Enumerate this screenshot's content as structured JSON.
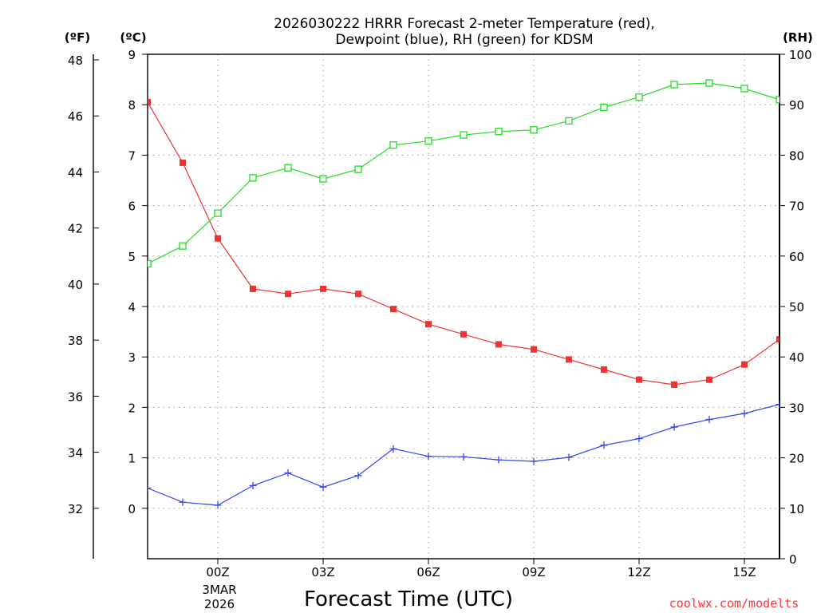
{
  "chart_data": {
    "type": "line",
    "title_line1": "2026030222 HRRR Forecast 2-meter Temperature (red),",
    "title_line2": "Dewpoint (blue), RH (green) for KDSM",
    "unit_f": "(ºF)",
    "unit_c": "(ºC)",
    "unit_rh": "(RH)",
    "xlabel": "Forecast Time (UTC)",
    "credit": "coolwx.com/modelts",
    "credit_color": "#ff3333",
    "x_hours": [
      -2,
      -1,
      0,
      1,
      2,
      3,
      4,
      5,
      6,
      7,
      8,
      9,
      10,
      11,
      12,
      13,
      14,
      15,
      16
    ],
    "xlim": [
      -2,
      16
    ],
    "x_ticks": [
      {
        "hour": 0,
        "label": "00Z"
      },
      {
        "hour": 3,
        "label": "03Z"
      },
      {
        "hour": 6,
        "label": "06Z"
      },
      {
        "hour": 9,
        "label": "09Z"
      },
      {
        "hour": 12,
        "label": "12Z"
      },
      {
        "hour": 15,
        "label": "15Z"
      }
    ],
    "date_label_1": "3MAR",
    "date_label_2": "2026",
    "celsius_axis": {
      "min": -1,
      "max": 9,
      "ticks": [
        0,
        1,
        2,
        3,
        4,
        5,
        6,
        7,
        8,
        9
      ]
    },
    "fahrenheit_axis": {
      "ticks": [
        32,
        34,
        36,
        38,
        40,
        42,
        44,
        46,
        48
      ]
    },
    "rh_axis": {
      "min": 0,
      "max": 100,
      "ticks": [
        0,
        10,
        20,
        30,
        40,
        50,
        60,
        70,
        80,
        90,
        100
      ]
    },
    "series": [
      {
        "name": "2-meter Temperature",
        "axis": "celsius",
        "color": "#ee3333",
        "marker": "filled-square",
        "values": [
          8.05,
          6.85,
          5.35,
          4.35,
          4.25,
          4.35,
          4.25,
          3.95,
          3.65,
          3.45,
          3.25,
          3.15,
          2.95,
          2.75,
          2.55,
          2.45,
          2.55,
          2.85,
          3.35
        ]
      },
      {
        "name": "Dewpoint",
        "axis": "celsius",
        "color": "#3344ee",
        "marker": "plus",
        "values": [
          0.4,
          0.12,
          0.06,
          0.45,
          0.7,
          0.42,
          0.65,
          1.18,
          1.03,
          1.02,
          0.96,
          0.93,
          1.01,
          1.25,
          1.38,
          1.61,
          1.76,
          1.88,
          2.06
        ]
      },
      {
        "name": "RH",
        "axis": "rh",
        "color": "#22dd22",
        "marker": "open-square",
        "values": [
          58.5,
          62,
          68.5,
          75.5,
          77.5,
          75.3,
          77.2,
          82,
          82.8,
          84,
          84.7,
          85,
          86.8,
          89.5,
          91.5,
          94,
          94.3,
          93.2,
          91
        ]
      }
    ]
  }
}
